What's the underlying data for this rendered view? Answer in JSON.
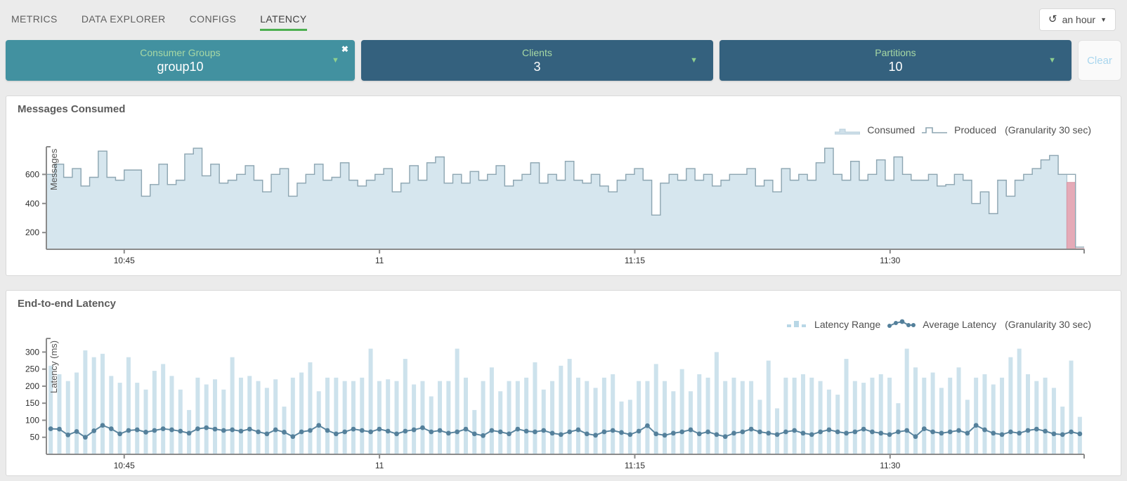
{
  "nav": {
    "tabs": [
      {
        "label": "METRICS",
        "active": false
      },
      {
        "label": "DATA EXPLORER",
        "active": false
      },
      {
        "label": "CONFIGS",
        "active": false
      },
      {
        "label": "LATENCY",
        "active": true
      }
    ],
    "active_underline_color": "#4caf50",
    "time_range": {
      "icon": "history-icon",
      "glyph": "↺",
      "label": "an hour"
    }
  },
  "filters": {
    "consumer_groups": {
      "label": "Consumer Groups",
      "value": "group10",
      "color": "#4291a0",
      "closable": true
    },
    "clients": {
      "label": "Clients",
      "value": "3",
      "color": "#34617e"
    },
    "partitions": {
      "label": "Partitions",
      "value": "10",
      "color": "#34617e"
    },
    "clear_label": "Clear",
    "label_color": "#a7d8a4"
  },
  "chart_data": [
    {
      "type": "area",
      "title": "Messages Consumed",
      "ylabel": "Messages",
      "granularity_note": "(Granularity 30 sec)",
      "x_ticks": [
        "10:45",
        "11",
        "11:15",
        "11:30"
      ],
      "x_tick_positions": [
        0.075,
        0.321,
        0.567,
        0.813
      ],
      "y_ticks": [
        200,
        400,
        600
      ],
      "ylim": [
        85,
        790
      ],
      "legend_position": "top-right",
      "series": [
        {
          "name": "Consumed",
          "type": "step-area",
          "color": "#d6e6ee",
          "stroke": "#9db9c6",
          "values": [
            600,
            670,
            580,
            640,
            520,
            580,
            760,
            580,
            560,
            630,
            630,
            450,
            530,
            670,
            530,
            560,
            740,
            780,
            590,
            670,
            540,
            560,
            600,
            660,
            560,
            480,
            600,
            640,
            450,
            540,
            600,
            670,
            560,
            580,
            680,
            560,
            520,
            560,
            600,
            640,
            480,
            540,
            660,
            560,
            680,
            720,
            540,
            600,
            540,
            620,
            560,
            600,
            660,
            520,
            560,
            600,
            680,
            540,
            600,
            560,
            690,
            560,
            540,
            600,
            520,
            480,
            560,
            600,
            640,
            560,
            320,
            540,
            600,
            560,
            640,
            560,
            600,
            520,
            560,
            600,
            600,
            640,
            520,
            560,
            480,
            640,
            560,
            600,
            560,
            680,
            780,
            600,
            560,
            690,
            560,
            600,
            700,
            560,
            720,
            600,
            560,
            560,
            600,
            520,
            530,
            600,
            560,
            400,
            480,
            330,
            560,
            450,
            560,
            600,
            640,
            700,
            730,
            600,
            545,
            90
          ]
        },
        {
          "name": "Produced",
          "type": "step-line",
          "color": "#8ea6b2",
          "values": [
            600,
            670,
            580,
            640,
            520,
            580,
            760,
            580,
            560,
            630,
            630,
            450,
            530,
            670,
            530,
            560,
            740,
            780,
            590,
            670,
            540,
            560,
            600,
            660,
            560,
            480,
            600,
            640,
            450,
            540,
            600,
            670,
            560,
            580,
            680,
            560,
            520,
            560,
            600,
            640,
            480,
            540,
            660,
            560,
            680,
            720,
            540,
            600,
            540,
            620,
            560,
            600,
            660,
            520,
            560,
            600,
            680,
            540,
            600,
            560,
            690,
            560,
            540,
            600,
            520,
            480,
            560,
            600,
            640,
            560,
            320,
            540,
            600,
            560,
            640,
            560,
            600,
            520,
            560,
            600,
            600,
            640,
            520,
            560,
            480,
            640,
            560,
            600,
            560,
            680,
            780,
            600,
            560,
            690,
            560,
            600,
            700,
            560,
            720,
            600,
            560,
            560,
            600,
            520,
            530,
            600,
            560,
            400,
            480,
            330,
            560,
            450,
            560,
            600,
            640,
            700,
            730,
            600,
            600,
            100
          ]
        }
      ],
      "lag_highlight": {
        "meaning": "consumed-behind-produced",
        "color": "#e5aab7",
        "stroke": "#d897a5",
        "indices": [
          118,
          119
        ]
      }
    },
    {
      "type": "bar",
      "title": "End-to-end Latency",
      "ylabel": "Latency (ms)",
      "granularity_note": "(Granularity 30 sec)",
      "x_ticks": [
        "10:45",
        "11",
        "11:15",
        "11:30"
      ],
      "x_tick_positions": [
        0.075,
        0.321,
        0.567,
        0.813
      ],
      "y_ticks": [
        50,
        100,
        150,
        200,
        250,
        300
      ],
      "ylim": [
        0,
        340
      ],
      "legend_position": "top-right",
      "series": [
        {
          "name": "Latency Range",
          "type": "bar",
          "color": "#cde2ec",
          "values": [
            260,
            235,
            215,
            240,
            305,
            285,
            295,
            230,
            210,
            285,
            210,
            190,
            245,
            265,
            230,
            190,
            130,
            225,
            205,
            220,
            190,
            285,
            225,
            230,
            215,
            195,
            220,
            140,
            225,
            240,
            270,
            185,
            225,
            225,
            215,
            215,
            225,
            310,
            215,
            220,
            215,
            280,
            205,
            215,
            170,
            215,
            215,
            310,
            225,
            130,
            215,
            255,
            185,
            215,
            215,
            225,
            270,
            190,
            215,
            260,
            280,
            225,
            215,
            195,
            225,
            235,
            155,
            160,
            215,
            215,
            265,
            215,
            185,
            250,
            185,
            235,
            225,
            300,
            215,
            225,
            215,
            215,
            160,
            275,
            135,
            225,
            225,
            235,
            225,
            215,
            190,
            175,
            280,
            215,
            210,
            225,
            235,
            225,
            150,
            310,
            255,
            225,
            240,
            195,
            225,
            255,
            160,
            225,
            235,
            205,
            225,
            285,
            310,
            235,
            215,
            225,
            195,
            140,
            275,
            110
          ]
        },
        {
          "name": "Average Latency",
          "type": "line-dots",
          "color": "#5d87a0",
          "dot_color": "#54809b",
          "values": [
            75,
            74,
            57,
            67,
            50,
            69,
            85,
            75,
            60,
            70,
            72,
            65,
            70,
            75,
            72,
            68,
            62,
            75,
            78,
            74,
            70,
            72,
            68,
            74,
            66,
            60,
            72,
            65,
            52,
            66,
            70,
            85,
            70,
            60,
            66,
            74,
            70,
            66,
            74,
            68,
            60,
            68,
            72,
            78,
            66,
            70,
            62,
            66,
            74,
            60,
            55,
            70,
            66,
            60,
            74,
            68,
            66,
            70,
            62,
            58,
            66,
            72,
            60,
            56,
            66,
            70,
            64,
            58,
            68,
            84,
            60,
            56,
            62,
            66,
            72,
            60,
            66,
            58,
            52,
            62,
            66,
            74,
            66,
            62,
            58,
            66,
            70,
            62,
            58,
            66,
            72,
            66,
            62,
            66,
            74,
            66,
            62,
            58,
            66,
            70,
            52,
            75,
            66,
            62,
            66,
            70,
            62,
            85,
            72,
            62,
            58,
            66,
            62,
            70,
            74,
            68,
            60,
            58,
            66,
            60
          ]
        }
      ]
    }
  ]
}
